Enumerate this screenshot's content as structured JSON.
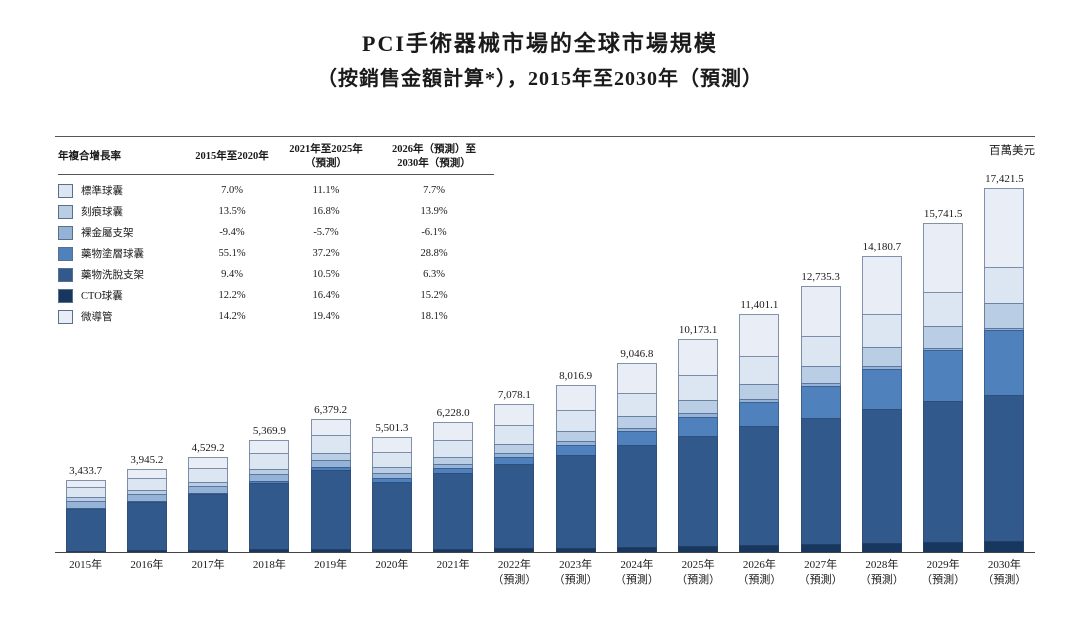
{
  "title": "PCI手術器械市場的全球市場規模",
  "subtitle": "（按銷售金額計算*），2015年至2030年（預測）",
  "unit_label": "百萬美元",
  "legend_table": {
    "headers": [
      "年複合增長率",
      "2015年至2020年",
      "2021年至2025年\n（預測）",
      "2026年（預測）至\n2030年（預測）"
    ]
  },
  "chart_data": {
    "type": "bar",
    "stacked": true,
    "title": "PCI手術器械市場的全球市場規模（按銷售金額計算），2015年至2030年（預測）",
    "ylabel": "百萬美元",
    "legend_position": "top-left",
    "grid": false,
    "segment_values_estimated": true,
    "x_labels": [
      "2015年",
      "2016年",
      "2017年",
      "2018年",
      "2019年",
      "2020年",
      "2021年",
      "2022年\n（預測）",
      "2023年\n（預測）",
      "2024年\n（預測）",
      "2025年\n（預測）",
      "2026年\n（預測）",
      "2027年\n（預測）",
      "2028年\n（預測）",
      "2029年\n（預測）",
      "2030年\n（預測）"
    ],
    "totals": [
      3433.7,
      3945.2,
      4529.2,
      5369.9,
      6379.2,
      5501.3,
      6228.0,
      7078.1,
      8016.9,
      9046.8,
      10173.1,
      11401.1,
      12735.3,
      14180.7,
      15741.5,
      17421.5
    ],
    "totals_formatted": [
      "3,433.7",
      "3,945.2",
      "4,529.2",
      "5,369.9",
      "6,379.2",
      "5,501.3",
      "6,228.0",
      "7,078.1",
      "8,016.9",
      "9,046.8",
      "10,173.1",
      "11,401.1",
      "12,735.3",
      "14,180.7",
      "15,741.5",
      "17,421.5"
    ],
    "stack_order_bottom_to_top": [
      "CTO球囊",
      "藥物洗脫支架",
      "藥物塗層球囊",
      "裸金屬支架",
      "刻痕球囊",
      "標準球囊",
      "微導管"
    ],
    "series": [
      {
        "name": "標準球囊",
        "color": "#dce6f2",
        "cagr": [
          "7.0%",
          "11.1%",
          "7.7%"
        ],
        "values": [
          500.0,
          568.3,
          642.7,
          747.4,
          867.0,
          726.3,
          812.4,
          909.0,
          1010.0,
          1113.7,
          1218.6,
          1326.0,
          1431.6,
          1533.8,
          1629.9,
          1717.9
        ]
      },
      {
        "name": "刻痕球囊",
        "color": "#b9cde5",
        "cagr": [
          "13.5%",
          "16.8%",
          "13.9%"
        ],
        "values": [
          150.0,
          180.9,
          216.9,
          267.6,
          329.2,
          292.6,
          344.1,
          404.7,
          472.7,
          548.1,
          630.4,
          725.5,
          828.4,
          938.6,
          1054.9,
          1175.9
        ]
      },
      {
        "name": "裸金屬支架",
        "color": "#95b3d7",
        "cagr": [
          "-9.4%",
          "-5.7%",
          "-6.1%"
        ],
        "values": [
          343.7,
          330.8,
          316.7,
          311.9,
          306.4,
          217.3,
          206.3,
          196.0,
          184.7,
          172.9,
          160.6,
          152.4,
          143.4,
          133.9,
          124.1,
          114.1
        ]
      },
      {
        "name": "藥物塗層球囊",
        "color": "#4f81bd",
        "cagr": [
          "55.1%",
          "37.2%",
          "28.8%"
        ],
        "values": [
          20.0,
          32.9,
          54.0,
          91.0,
          153.1,
          185.9,
          256.8,
          354.8,
          486.9,
          663.1,
          895.9,
          1165.8,
          1505.3,
          1928.6,
          2451.1,
          3089.6
        ]
      },
      {
        "name": "藥物洗脫支架",
        "color": "#31598c",
        "cagr": [
          "9.4%",
          "10.5%",
          "6.3%"
        ],
        "values": [
          2000.0,
          2324.3,
          2687.4,
          3195.3,
          3789.6,
          3246.0,
          3611.1,
          4018.5,
          4440.9,
          4870.7,
          5300.5,
          5692.7,
          6066.5,
          6414.5,
          6728.3,
          6999.5
        ]
      },
      {
        "name": "CTO球囊",
        "color": "#17375e",
        "cagr": [
          "12.2%",
          "16.4%",
          "15.2%"
        ],
        "values": [
          70.0,
          83.4,
          98.9,
          120.7,
          146.7,
          128.9,
          151.1,
          177.2,
          206.2,
          238.2,
          273.1,
          317.8,
          367.0,
          420.6,
          478.2,
          539.1
        ]
      },
      {
        "name": "微導管",
        "color": "#e9eef6",
        "cagr": [
          "14.2%",
          "19.4%",
          "18.1%"
        ],
        "values": [
          350.0,
          424.6,
          512.6,
          636.0,
          787.2,
          704.3,
          846.2,
          1017.9,
          1215.5,
          1440.1,
          1694.0,
          2020.9,
          2393.1,
          2810.7,
          3275.0,
          3785.4
        ]
      }
    ]
  }
}
